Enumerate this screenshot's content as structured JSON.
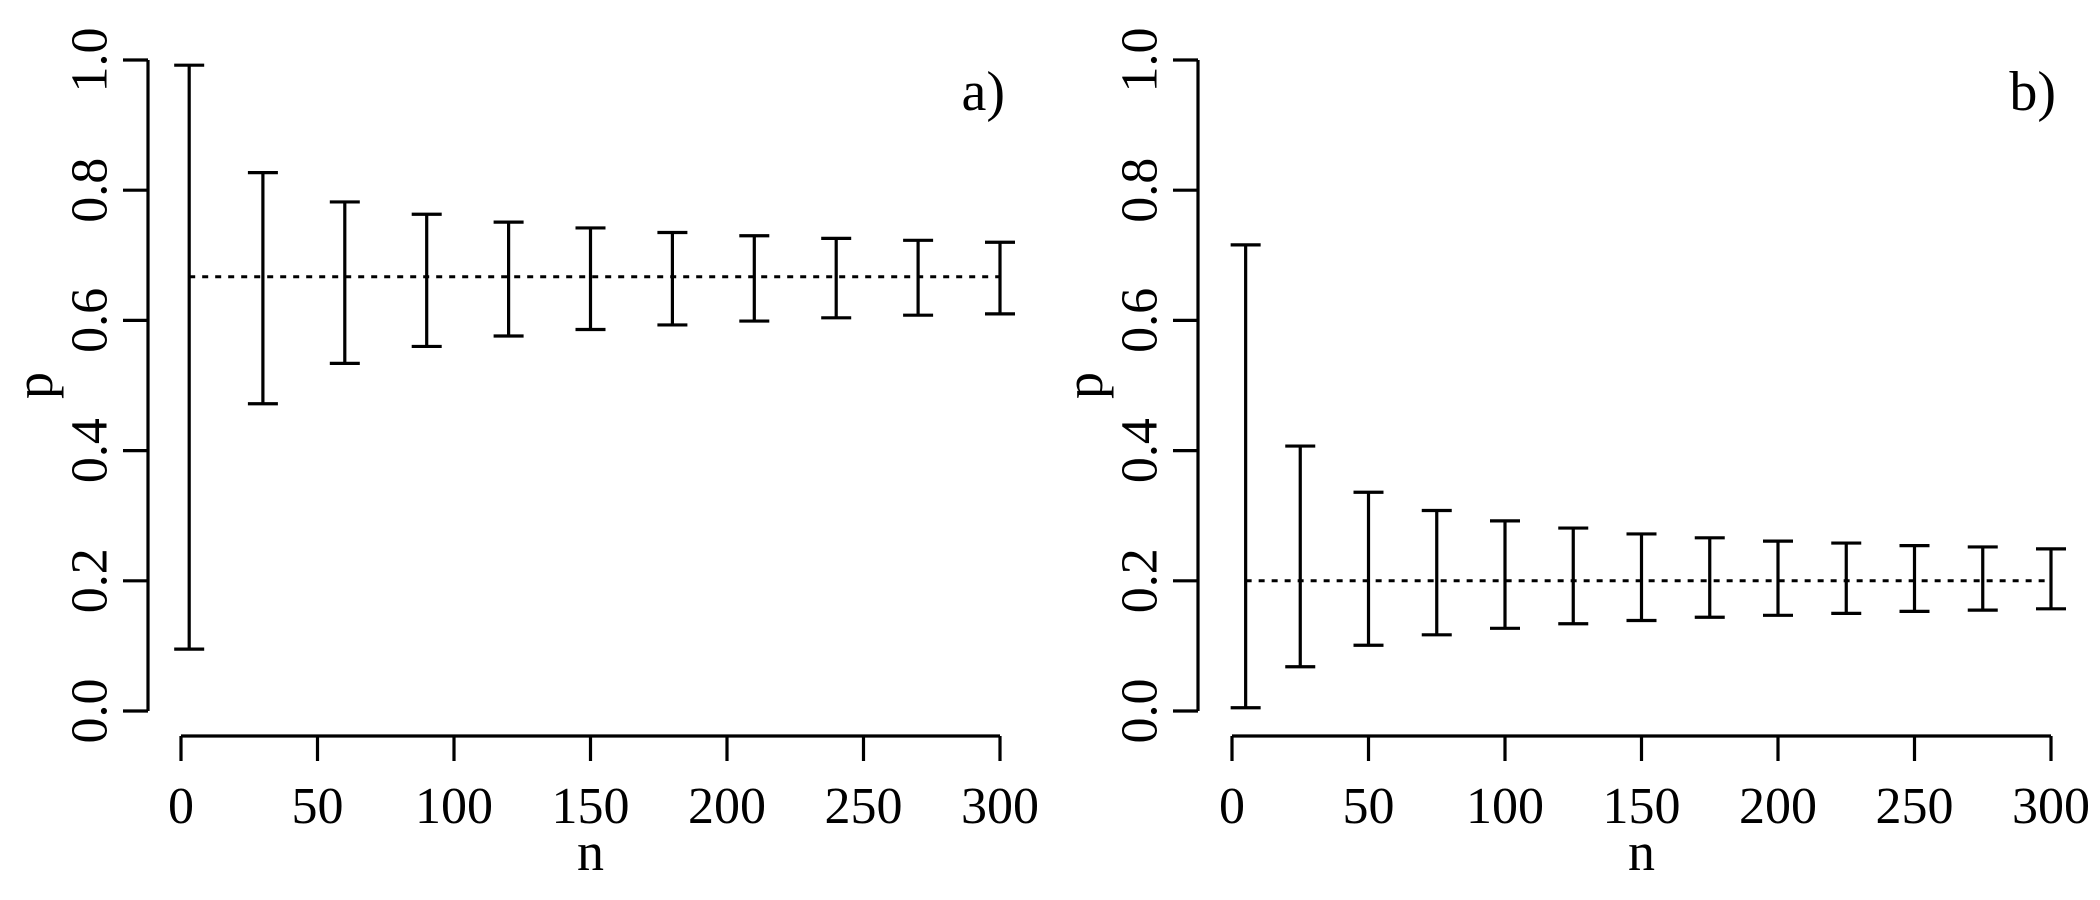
{
  "chart_data": [
    {
      "panel_label": "a)",
      "type": "errorbar",
      "xlabel": "n",
      "ylabel": "p",
      "xlim": [
        0,
        300
      ],
      "ylim": [
        0,
        1
      ],
      "xticks": [
        0,
        50,
        100,
        150,
        200,
        250,
        300
      ],
      "xtick_labels": [
        "0",
        "50",
        "100",
        "150",
        "200",
        "250",
        "300"
      ],
      "yticks": [
        0,
        0.2,
        0.4,
        0.6,
        0.8,
        1.0
      ],
      "ytick_labels": [
        "0.0",
        "0.2",
        "0.4",
        "0.6",
        "0.8",
        "1.0"
      ],
      "reference_line": 0.667,
      "points": [
        {
          "n": 3,
          "lower": 0.095,
          "upper": 0.992
        },
        {
          "n": 30,
          "lower": 0.472,
          "upper": 0.827
        },
        {
          "n": 60,
          "lower": 0.534,
          "upper": 0.782
        },
        {
          "n": 90,
          "lower": 0.56,
          "upper": 0.763
        },
        {
          "n": 120,
          "lower": 0.576,
          "upper": 0.751
        },
        {
          "n": 150,
          "lower": 0.586,
          "upper": 0.742
        },
        {
          "n": 180,
          "lower": 0.593,
          "upper": 0.735
        },
        {
          "n": 210,
          "lower": 0.599,
          "upper": 0.73
        },
        {
          "n": 240,
          "lower": 0.604,
          "upper": 0.726
        },
        {
          "n": 270,
          "lower": 0.608,
          "upper": 0.723
        },
        {
          "n": 300,
          "lower": 0.61,
          "upper": 0.72
        }
      ]
    },
    {
      "panel_label": "b)",
      "type": "errorbar",
      "xlabel": "n",
      "ylabel": "p",
      "xlim": [
        0,
        300
      ],
      "ylim": [
        0,
        1
      ],
      "xticks": [
        0,
        50,
        100,
        150,
        200,
        250,
        300
      ],
      "xtick_labels": [
        "0",
        "50",
        "100",
        "150",
        "200",
        "250",
        "300"
      ],
      "yticks": [
        0,
        0.2,
        0.4,
        0.6,
        0.8,
        1.0
      ],
      "ytick_labels": [
        "0.0",
        "0.2",
        "0.4",
        "0.6",
        "0.8",
        "1.0"
      ],
      "reference_line": 0.2,
      "points": [
        {
          "n": 5,
          "lower": 0.005,
          "upper": 0.716
        },
        {
          "n": 25,
          "lower": 0.068,
          "upper": 0.407
        },
        {
          "n": 50,
          "lower": 0.101,
          "upper": 0.336
        },
        {
          "n": 75,
          "lower": 0.117,
          "upper": 0.308
        },
        {
          "n": 100,
          "lower": 0.127,
          "upper": 0.292
        },
        {
          "n": 125,
          "lower": 0.134,
          "upper": 0.281
        },
        {
          "n": 150,
          "lower": 0.139,
          "upper": 0.272
        },
        {
          "n": 175,
          "lower": 0.144,
          "upper": 0.266
        },
        {
          "n": 200,
          "lower": 0.147,
          "upper": 0.261
        },
        {
          "n": 225,
          "lower": 0.15,
          "upper": 0.258
        },
        {
          "n": 250,
          "lower": 0.153,
          "upper": 0.254
        },
        {
          "n": 275,
          "lower": 0.155,
          "upper": 0.252
        },
        {
          "n": 300,
          "lower": 0.157,
          "upper": 0.249
        }
      ]
    }
  ]
}
